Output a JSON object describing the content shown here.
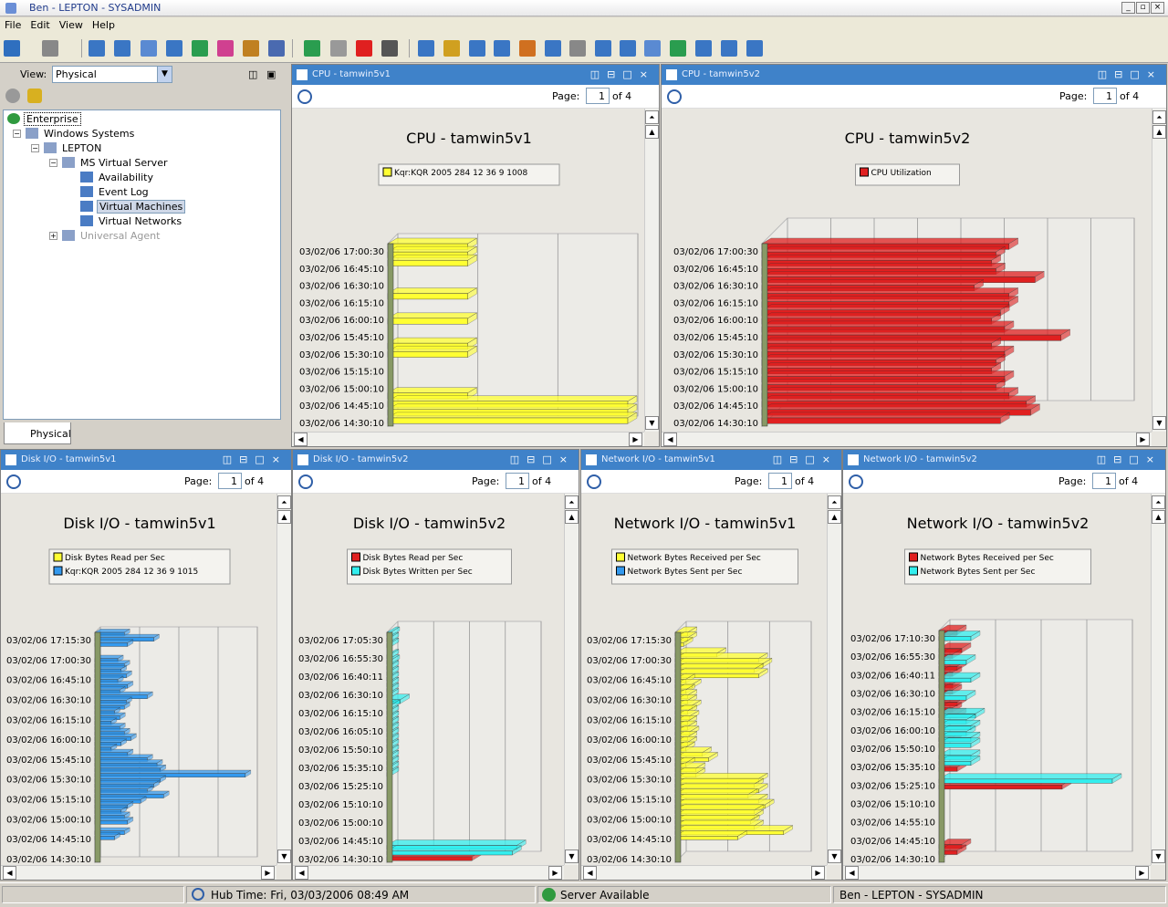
{
  "window": {
    "title": "Ben - LEPTON - SYSADMIN"
  },
  "menu": [
    "File",
    "Edit",
    "View",
    "Help"
  ],
  "left": {
    "view_label": "View:",
    "view_value": "Physical",
    "tab_label": "Physical",
    "tree": [
      {
        "label": "Enterprise",
        "level": 0,
        "icon": "globe-icon"
      },
      {
        "label": "Windows Systems",
        "level": 1,
        "icon": "folder-icon"
      },
      {
        "label": "LEPTON",
        "level": 2,
        "icon": "computer-icon"
      },
      {
        "label": "MS Virtual Server",
        "level": 3,
        "icon": "server-icon"
      },
      {
        "label": "Availability",
        "level": 4,
        "icon": "workspace-icon"
      },
      {
        "label": "Event Log",
        "level": 4,
        "icon": "workspace-icon"
      },
      {
        "label": "Virtual Machines",
        "level": 4,
        "icon": "workspace-icon"
      },
      {
        "label": "Virtual Networks",
        "level": 4,
        "icon": "workspace-icon"
      },
      {
        "label": "Universal Agent",
        "level": 3,
        "icon": "agent-icon"
      }
    ]
  },
  "panels": [
    {
      "id": "p0",
      "title": "CPU - tamwin5v1",
      "page_label": "Page:",
      "page": "1",
      "of": "of 4"
    },
    {
      "id": "p1",
      "title": "CPU - tamwin5v2",
      "page_label": "Page:",
      "page": "1",
      "of": "of 4"
    },
    {
      "id": "p2",
      "title": "Disk I/O - tamwin5v1",
      "page_label": "Page:",
      "page": "1",
      "of": "of 4"
    },
    {
      "id": "p3",
      "title": "Disk I/O - tamwin5v2",
      "page_label": "Page:",
      "page": "1",
      "of": "of 4"
    },
    {
      "id": "p4",
      "title": "Network I/O - tamwin5v1",
      "page_label": "Page:",
      "page": "1",
      "of": "of 4"
    },
    {
      "id": "p5",
      "title": "Network I/O - tamwin5v2",
      "page_label": "Page:",
      "page": "1",
      "of": "of 4"
    }
  ],
  "chart_data": [
    {
      "type": "bar",
      "orientation": "horizontal",
      "title": "CPU - tamwin5v1",
      "legend": [
        "Kqr:KQR 2005 284 12 36 9 1008"
      ],
      "colors": [
        "#ffff33"
      ],
      "xlim": [
        0,
        3
      ],
      "xticks": [
        "0",
        "1",
        "2",
        "3"
      ],
      "ylabels": [
        "03/02/06 17:00:30",
        "03/02/06 16:45:10",
        "03/02/06 16:30:10",
        "03/02/06 16:15:10",
        "03/02/06 16:00:10",
        "03/02/06 15:45:10",
        "03/02/06 15:30:10",
        "03/02/06 15:15:10",
        "03/02/06 15:00:10",
        "03/02/06 14:45:10",
        "03/02/06 14:30:10"
      ],
      "series": [
        {
          "values": [
            1,
            1,
            1,
            0,
            0,
            0,
            1,
            0,
            0,
            1,
            0,
            0,
            1,
            1,
            0,
            0,
            0,
            0,
            1,
            3,
            3,
            3
          ]
        }
      ]
    },
    {
      "type": "bar",
      "orientation": "horizontal",
      "title": "CPU - tamwin5v2",
      "legend": [
        "CPU Utilization"
      ],
      "colors": [
        "#e02020"
      ],
      "xlim": [
        0,
        80
      ],
      "xticks": [
        "0",
        "10",
        "20",
        "30",
        "40",
        "50",
        "60",
        "70",
        "80"
      ],
      "ylabels": [
        "03/02/06 17:00:30",
        "03/02/06 16:45:10",
        "03/02/06 16:30:10",
        "03/02/06 16:15:10",
        "03/02/06 16:00:10",
        "03/02/06 15:45:10",
        "03/02/06 15:30:10",
        "03/02/06 15:15:10",
        "03/02/06 15:00:10",
        "03/02/06 14:45:10",
        "03/02/06 14:30:10"
      ],
      "series": [
        {
          "values": [
            57,
            54,
            53,
            54,
            63,
            49,
            57,
            57,
            55,
            53,
            56,
            69,
            53,
            56,
            54,
            53,
            56,
            54,
            57,
            61,
            62,
            55
          ]
        }
      ]
    },
    {
      "type": "bar",
      "orientation": "horizontal",
      "title": "Disk I/O - tamwin5v1",
      "legend": [
        "Disk Bytes Read per Sec",
        "Kqr:KQR 2005 284 12 36 9 1015"
      ],
      "colors": [
        "#ffff33",
        "#3399ee"
      ],
      "xlim": [
        0,
        2400
      ],
      "xticks": [
        "0",
        "600",
        "1200",
        "1800",
        "2400"
      ],
      "ylabels": [
        "03/02/06 17:15:30",
        "03/02/06 17:00:30",
        "03/02/06 16:45:10",
        "03/02/06 16:30:10",
        "03/02/06 16:15:10",
        "03/02/06 16:00:10",
        "03/02/06 15:45:10",
        "03/02/06 15:30:10",
        "03/02/06 15:15:10",
        "03/02/06 15:00:10",
        "03/02/06 14:45:10",
        "03/02/06 14:30:10"
      ],
      "series": [
        {
          "name": "Disk Bytes Read per Sec",
          "values": [
            0,
            0,
            0,
            0,
            0,
            0,
            0,
            0,
            0,
            0,
            0,
            0,
            0,
            0,
            0,
            0,
            0,
            0,
            0,
            0,
            0,
            0,
            0,
            0,
            0,
            0,
            0,
            0,
            0,
            0,
            0,
            0,
            0,
            0,
            0,
            0,
            0,
            0,
            0,
            0,
            0,
            0,
            0,
            0
          ]
        },
        {
          "name": "Kqr:KQR 2005 284 12 36 9 1015",
          "values": [
            450,
            900,
            500,
            0,
            0,
            350,
            450,
            400,
            480,
            350,
            500,
            380,
            800,
            480,
            450,
            300,
            380,
            250,
            380,
            450,
            550,
            400,
            250,
            500,
            800,
            950,
            1000,
            2300,
            1000,
            900,
            800,
            1050,
            700,
            500,
            400,
            450,
            500,
            0,
            450,
            300,
            0,
            0,
            0,
            0
          ]
        }
      ]
    },
    {
      "type": "bar",
      "orientation": "horizontal",
      "title": "Disk I/O - tamwin5v2",
      "legend": [
        "Disk Bytes Read per Sec",
        "Disk Bytes Written per Sec"
      ],
      "colors": [
        "#e02020",
        "#33eeee"
      ],
      "xlim": [
        0,
        16000
      ],
      "xticks": [
        "0",
        "4000",
        "8000",
        "12000",
        "16000"
      ],
      "ylabels": [
        "03/02/06 17:05:30",
        "03/02/06 16:55:30",
        "03/02/06 16:40:11",
        "03/02/06 16:30:10",
        "03/02/06 16:15:10",
        "03/02/06 16:05:10",
        "03/02/06 15:50:10",
        "03/02/06 15:35:10",
        "03/02/06 15:25:10",
        "03/02/06 15:10:10",
        "03/02/06 15:00:10",
        "03/02/06 14:45:10",
        "03/02/06 14:30:10"
      ],
      "series": [
        {
          "name": "Disk Bytes Read per Sec",
          "values": [
            0,
            0,
            0,
            0,
            0,
            0,
            0,
            0,
            0,
            0,
            0,
            0,
            0,
            0,
            0,
            0,
            0,
            0,
            0,
            0,
            0,
            0,
            0,
            0,
            0,
            0,
            0,
            0,
            0,
            0,
            0,
            0,
            0,
            0,
            0,
            0,
            0,
            0,
            0,
            0,
            9500
          ]
        },
        {
          "name": "Disk Bytes Written per Sec",
          "values": [
            400,
            300,
            300,
            0,
            300,
            400,
            300,
            300,
            300,
            300,
            300,
            300,
            1500,
            400,
            300,
            300,
            300,
            300,
            300,
            300,
            300,
            300,
            300,
            300,
            300,
            300,
            0,
            0,
            0,
            0,
            0,
            0,
            0,
            0,
            0,
            0,
            0,
            0,
            14500,
            14000,
            0
          ]
        }
      ]
    },
    {
      "type": "bar",
      "orientation": "horizontal",
      "title": "Network I/O - tamwin5v1",
      "legend": [
        "Network Bytes Received per Sec",
        "Network Bytes Sent per Sec"
      ],
      "colors": [
        "#ffff33",
        "#3399ee"
      ],
      "xlim": [
        0,
        600
      ],
      "xticks": [
        "0",
        "200",
        "400",
        "600"
      ],
      "ylabels": [
        "03/02/06 17:15:30",
        "03/02/06 17:00:30",
        "03/02/06 16:45:10",
        "03/02/06 16:30:10",
        "03/02/06 16:15:10",
        "03/02/06 16:00:10",
        "03/02/06 15:45:10",
        "03/02/06 15:30:10",
        "03/02/06 15:15:10",
        "03/02/06 15:00:10",
        "03/02/06 14:45:10",
        "03/02/06 14:30:10"
      ],
      "series": [
        {
          "name": "Network Bytes Received per Sec",
          "values": [
            60,
            60,
            40,
            0,
            200,
            400,
            420,
            380,
            400,
            50,
            80,
            50,
            60,
            60,
            80,
            60,
            70,
            60,
            60,
            70,
            60,
            60,
            50,
            130,
            160,
            50,
            100,
            100,
            400,
            380,
            400,
            350,
            400,
            430,
            380,
            380,
            360,
            380,
            520,
            300,
            0,
            0,
            0,
            0
          ]
        },
        {
          "name": "Network Bytes Sent per Sec",
          "values": [
            0,
            0,
            0,
            0,
            0,
            0,
            0,
            0,
            0,
            0,
            0,
            0,
            0,
            0,
            0,
            0,
            0,
            0,
            0,
            0,
            0,
            0,
            0,
            0,
            0,
            0,
            0,
            0,
            0,
            0,
            0,
            0,
            0,
            0,
            0,
            0,
            0,
            0,
            0,
            0,
            0,
            0,
            0,
            0
          ]
        }
      ]
    },
    {
      "type": "bar",
      "orientation": "horizontal",
      "title": "Network I/O - tamwin5v2",
      "legend": [
        "Network Bytes Received per Sec",
        "Network Bytes Sent per Sec"
      ],
      "colors": [
        "#e02020",
        "#33eeee"
      ],
      "xlim": [
        0,
        40
      ],
      "xticks": [
        "0",
        "10",
        "20",
        "30",
        "40"
      ],
      "ylabels": [
        "03/02/06 17:10:30",
        "03/02/06 16:55:30",
        "03/02/06 16:40:11",
        "03/02/06 16:30:10",
        "03/02/06 16:15:10",
        "03/02/06 16:00:10",
        "03/02/06 15:50:10",
        "03/02/06 15:35:10",
        "03/02/06 15:25:10",
        "03/02/06 15:10:10",
        "03/02/06 14:55:10",
        "03/02/06 14:45:10",
        "03/02/06 14:30:10"
      ],
      "series": [
        {
          "name": "Network Bytes Received per Sec",
          "values": [
            4,
            2,
            0,
            5,
            3,
            0,
            4,
            3,
            0,
            3,
            3,
            0,
            4,
            3,
            4,
            0,
            0,
            0,
            3,
            0,
            0,
            0,
            0,
            4,
            0,
            0,
            27,
            0,
            0,
            0,
            0,
            0,
            0,
            0,
            0,
            0,
            5,
            4,
            0
          ]
        },
        {
          "name": "Network Bytes Sent per Sec",
          "values": [
            0,
            7,
            0,
            0,
            0,
            6,
            0,
            0,
            7,
            0,
            0,
            6,
            0,
            0,
            8,
            6,
            7,
            6,
            7,
            7,
            0,
            7,
            7,
            0,
            0,
            38,
            0,
            0,
            0,
            0,
            0,
            0,
            0,
            0,
            0,
            0,
            0,
            0,
            0
          ]
        }
      ]
    }
  ],
  "status": {
    "hub": "Hub Time: Fri, 03/03/2006 08:49 AM",
    "server": "Server Available",
    "user": "Ben - LEPTON - SYSADMIN"
  }
}
